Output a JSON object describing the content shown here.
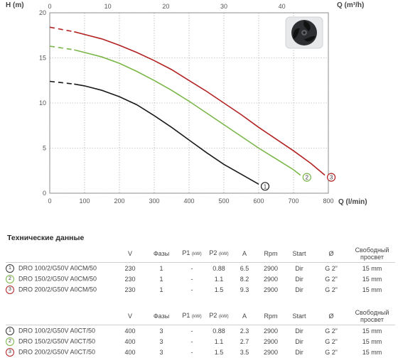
{
  "chart_data": {
    "type": "line",
    "ylabel": "H (m)",
    "xlabel": "Q (l/min)",
    "x2label": "Q (m³/h)",
    "xlim": [
      0,
      800
    ],
    "ylim": [
      0,
      20
    ],
    "x2lim": [
      0,
      48
    ],
    "x_ticks": [
      "0",
      "100",
      "200",
      "300",
      "400",
      "500",
      "600",
      "700",
      "800"
    ],
    "y_ticks": [
      "0",
      "5",
      "10",
      "15",
      "20"
    ],
    "x2_ticks": [
      "0",
      "10",
      "20",
      "30",
      "40"
    ],
    "grid": true,
    "series": [
      {
        "name": "1",
        "color": "#1a1a1a",
        "dashed_x": [
          0,
          70
        ],
        "x": [
          0,
          70,
          100,
          150,
          200,
          250,
          300,
          350,
          400,
          450,
          500,
          550,
          600
        ],
        "y": [
          12.4,
          12.1,
          11.9,
          11.4,
          10.7,
          9.8,
          8.6,
          7.3,
          5.9,
          4.5,
          3.2,
          2.1,
          1.0
        ]
      },
      {
        "name": "2",
        "color": "#7ab648",
        "dashed_x": [
          0,
          70
        ],
        "x": [
          0,
          70,
          100,
          150,
          200,
          250,
          300,
          350,
          400,
          450,
          500,
          550,
          600,
          650,
          700,
          720
        ],
        "y": [
          16.3,
          15.9,
          15.6,
          15.1,
          14.4,
          13.5,
          12.5,
          11.4,
          10.2,
          8.9,
          7.6,
          6.3,
          5.0,
          3.8,
          2.6,
          2.0
        ]
      },
      {
        "name": "3",
        "color": "#b22222",
        "dashed_x": [
          0,
          70
        ],
        "x": [
          0,
          70,
          100,
          150,
          200,
          250,
          300,
          350,
          400,
          450,
          500,
          550,
          600,
          650,
          700,
          750,
          790
        ],
        "y": [
          18.4,
          17.9,
          17.6,
          17.1,
          16.4,
          15.6,
          14.7,
          13.7,
          12.5,
          11.3,
          10.0,
          8.7,
          7.3,
          6.0,
          4.7,
          3.3,
          2.0
        ]
      }
    ],
    "image": "impeller-icon"
  },
  "table": {
    "title": "Технические данные",
    "headers": {
      "v": "V",
      "phases": "Фазы",
      "p1": "P1",
      "p1_unit": "(kW)",
      "p2": "P2",
      "p2_unit": "(kW)",
      "a": "A",
      "rpm": "Rpm",
      "start": "Start",
      "diameter": "Ø",
      "free_passage": "Свободный просвет"
    },
    "group1": [
      {
        "num": "1",
        "model": "DRO 100/2/G50V A0CM/50",
        "v": "230",
        "phases": "1",
        "p1": "-",
        "p2": "0.88",
        "a": "6.5",
        "rpm": "2900",
        "start": "Dir",
        "diameter": "G 2”",
        "free_passage": "15 mm"
      },
      {
        "num": "2",
        "model": "DRO 150/2/G50V A0CM/50",
        "v": "230",
        "phases": "1",
        "p1": "-",
        "p2": "1.1",
        "a": "8.2",
        "rpm": "2900",
        "start": "Dir",
        "diameter": "G 2”",
        "free_passage": "15 mm"
      },
      {
        "num": "3",
        "model": "DRO 200/2/G50V A0CM/50",
        "v": "230",
        "phases": "1",
        "p1": "-",
        "p2": "1.5",
        "a": "9.3",
        "rpm": "2900",
        "start": "Dir",
        "diameter": "G 2”",
        "free_passage": "15 mm"
      }
    ],
    "group2": [
      {
        "num": "1",
        "model": "DRO 100/2/G50V A0CT/50",
        "v": "400",
        "phases": "3",
        "p1": "-",
        "p2": "0.88",
        "a": "2.3",
        "rpm": "2900",
        "start": "Dir",
        "diameter": "G 2”",
        "free_passage": "15 mm"
      },
      {
        "num": "2",
        "model": "DRO 150/2/G50V A0CT/50",
        "v": "400",
        "phases": "3",
        "p1": "-",
        "p2": "1.1",
        "a": "2.7",
        "rpm": "2900",
        "start": "Dir",
        "diameter": "G 2”",
        "free_passage": "15 mm"
      },
      {
        "num": "3",
        "model": "DRO 200/2/G50V A0CT/50",
        "v": "400",
        "phases": "3",
        "p1": "-",
        "p2": "1.5",
        "a": "3.5",
        "rpm": "2900",
        "start": "Dir",
        "diameter": "G 2”",
        "free_passage": "15 mm"
      }
    ]
  }
}
